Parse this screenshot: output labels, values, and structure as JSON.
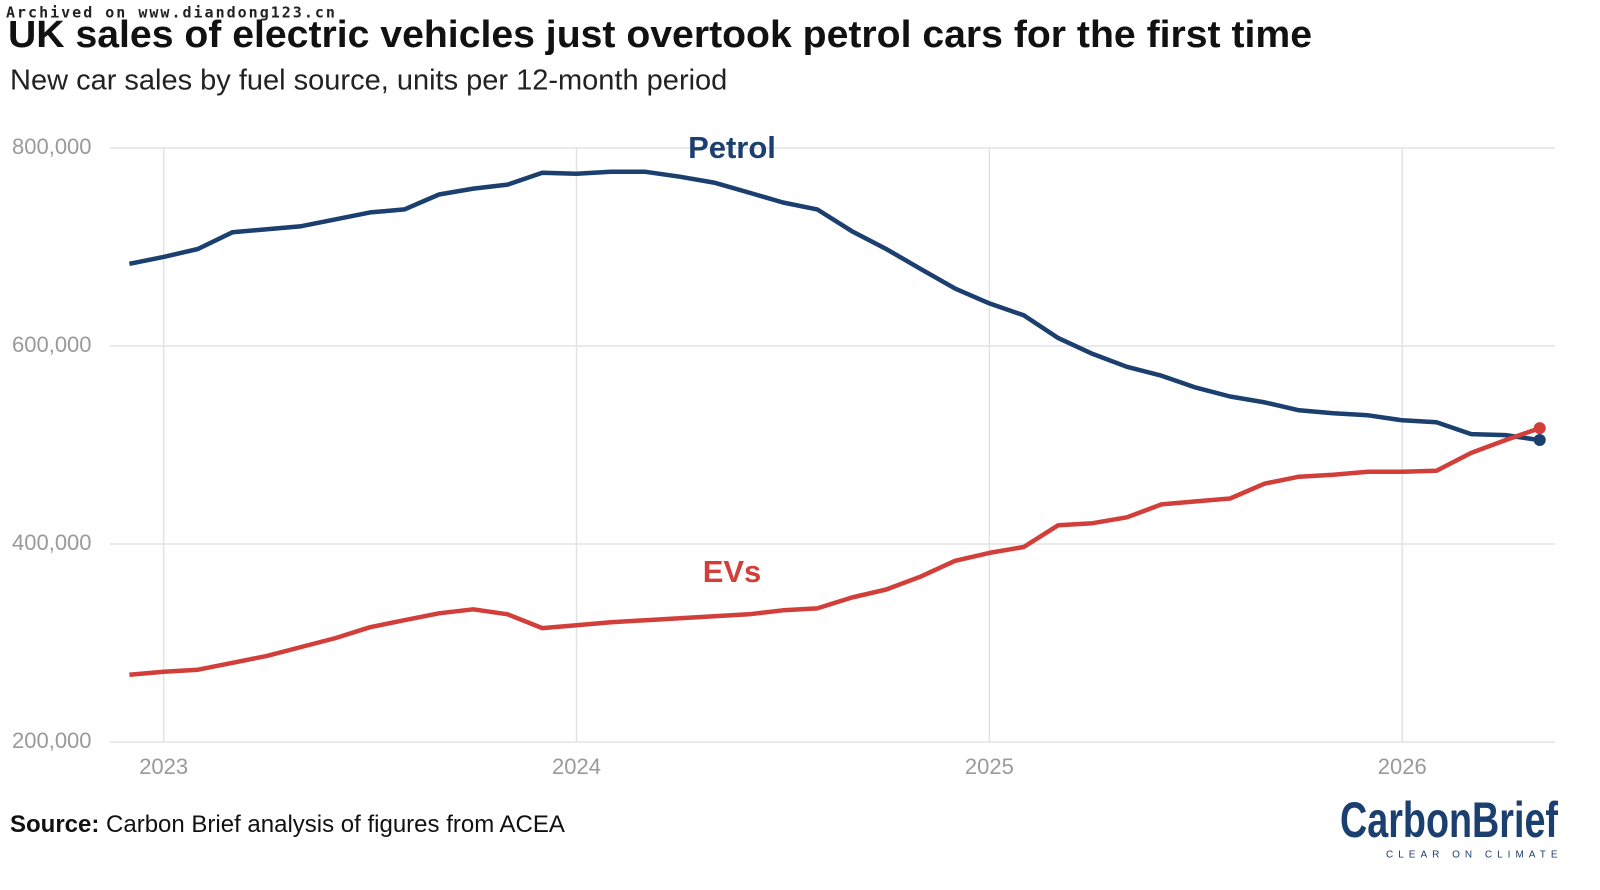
{
  "chart_data": {
    "type": "line",
    "watermark": "Archived on www.diandong123.cn",
    "title": "UK sales of electric vehicles just overtook petrol cars for the first time",
    "subtitle": "New car sales by fuel source, units per 12-month period",
    "x": [
      2022.917,
      2023,
      2023.083,
      2023.167,
      2023.25,
      2023.333,
      2023.417,
      2023.5,
      2023.583,
      2023.667,
      2023.75,
      2023.833,
      2023.917,
      2024,
      2024.083,
      2024.167,
      2024.25,
      2024.333,
      2024.417,
      2024.5,
      2024.583,
      2024.667,
      2024.75,
      2024.833,
      2024.917,
      2025,
      2025.083,
      2025.167,
      2025.25,
      2025.333,
      2025.417,
      2025.5,
      2025.583,
      2025.667,
      2025.75,
      2025.833,
      2025.917,
      2026,
      2026.083,
      2026.167,
      2026.25,
      2026.333
    ],
    "series": [
      {
        "name": "Petrol",
        "color": "#1b3f6e",
        "values": [
          683000,
          690000,
          698000,
          715000,
          718000,
          721000,
          728000,
          735000,
          738000,
          753000,
          759000,
          763000,
          775000,
          774000,
          776000,
          776000,
          771000,
          765000,
          755000,
          745000,
          738000,
          716000,
          698000,
          678000,
          658000,
          643000,
          631000,
          608000,
          592000,
          579000,
          570000,
          558000,
          549000,
          543000,
          535000,
          532000,
          530000,
          525000,
          523000,
          511000,
          510000,
          505000
        ]
      },
      {
        "name": "EVs",
        "color": "#d23f3a",
        "values": [
          268000,
          271000,
          273000,
          280000,
          287000,
          296000,
          305000,
          316000,
          323000,
          330000,
          334000,
          329000,
          315000,
          318000,
          321000,
          323000,
          325000,
          327000,
          329000,
          333000,
          335000,
          346000,
          354000,
          367000,
          383000,
          391000,
          397000,
          419000,
          421000,
          427000,
          440000,
          443000,
          446000,
          461000,
          468000,
          470000,
          473000,
          473000,
          474000,
          492000,
          505000,
          517000
        ]
      }
    ],
    "xlim": [
      2022.87,
      2026.37
    ],
    "xticks": [
      2023,
      2024,
      2025,
      2026
    ],
    "ylim": [
      200000,
      800000
    ],
    "yticks": [
      {
        "value": 200000,
        "label": "200,000"
      },
      {
        "value": 400000,
        "label": "400,000"
      },
      {
        "value": 600000,
        "label": "600,000"
      },
      {
        "value": 800000,
        "label": "800,000"
      }
    ],
    "grid": true,
    "source_label": "Source:",
    "source": "Carbon Brief analysis of figures from ACEA",
    "logo": "CarbonBrief",
    "logo_tagline": "CLEAR ON CLIMATE"
  }
}
